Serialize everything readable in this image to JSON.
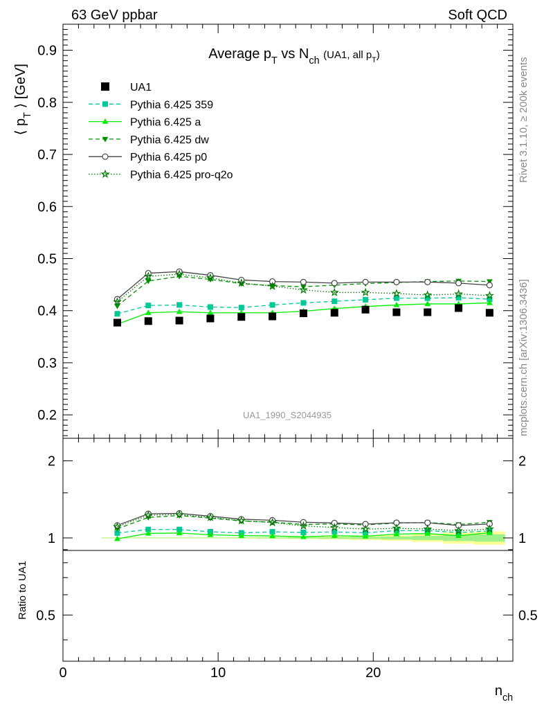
{
  "header": {
    "left": "63 GeV ppbar",
    "right": "Soft QCD"
  },
  "side_labels": {
    "top": "Rivet 3.1.10, ≥ 200k events",
    "bottom": "mcplots.cern.ch [arXiv:1306.3436]"
  },
  "chart_data": {
    "type": "scatter",
    "title": "Average p_T vs N_ch (UA1, all p_T)",
    "analysis_label": "UA1_1990_S2044935",
    "xlabel": "n_ch",
    "ylabel": "⟨ p_T ⟩ [GeV]",
    "ratio_ylabel": "Ratio to UA1",
    "xlim": [
      0,
      29
    ],
    "ylim": [
      0.155,
      0.95
    ],
    "ratio_ylim": [
      0.33,
      2.45
    ],
    "ratio_scale": "log",
    "x_ticks": [
      0,
      10,
      20
    ],
    "y_ticks": [
      "0.2",
      "0.3",
      "0.4",
      "0.5",
      "0.6",
      "0.7",
      "0.8",
      "0.9"
    ],
    "ratio_ticks": [
      "0.5",
      "1",
      "2"
    ],
    "legend_position": "top-left",
    "x": [
      3.5,
      5.5,
      7.5,
      9.5,
      11.5,
      13.5,
      15.5,
      17.5,
      19.5,
      21.5,
      23.5,
      25.5,
      27.5
    ],
    "data": {
      "name": "UA1",
      "values": [
        0.377,
        0.38,
        0.381,
        0.385,
        0.388,
        0.389,
        0.395,
        0.396,
        0.402,
        0.397,
        0.397,
        0.405,
        0.396
      ],
      "ratio_band": [
        0.005,
        0.005,
        0.005,
        0.005,
        0.006,
        0.008,
        0.01,
        0.013,
        0.018,
        0.025,
        0.035,
        0.05,
        0.06
      ]
    },
    "series": [
      {
        "name": "Pythia 6.425 359",
        "color": "#00c896",
        "dash": "6,4",
        "marker": "square",
        "values": [
          0.394,
          0.41,
          0.411,
          0.407,
          0.406,
          0.411,
          0.415,
          0.418,
          0.421,
          0.424,
          0.424,
          0.425,
          0.422
        ]
      },
      {
        "name": "Pythia 6.425 a",
        "color": "#00ee00",
        "dash": "",
        "marker": "triangle-up",
        "values": [
          0.374,
          0.396,
          0.398,
          0.396,
          0.396,
          0.396,
          0.399,
          0.404,
          0.408,
          0.411,
          0.413,
          0.413,
          0.415
        ]
      },
      {
        "name": "Pythia 6.425 dw",
        "color": "#009000",
        "dash": "6,4",
        "marker": "triangle-down",
        "values": [
          0.409,
          0.457,
          0.466,
          0.46,
          0.452,
          0.448,
          0.446,
          0.449,
          0.452,
          0.454,
          0.456,
          0.457,
          0.456
        ]
      },
      {
        "name": "Pythia 6.425 p0",
        "color": "#444444",
        "dash": "",
        "marker": "circle-open",
        "values": [
          0.422,
          0.472,
          0.475,
          0.468,
          0.459,
          0.456,
          0.455,
          0.453,
          0.455,
          0.455,
          0.455,
          0.453,
          0.449
        ]
      },
      {
        "name": "Pythia 6.425 pro-q2o",
        "color": "#007800",
        "dash": "1.5,2.5",
        "marker": "star-open",
        "values": [
          0.417,
          0.466,
          0.47,
          0.463,
          0.453,
          0.447,
          0.44,
          0.435,
          0.435,
          0.433,
          0.43,
          0.432,
          0.429
        ]
      }
    ]
  }
}
